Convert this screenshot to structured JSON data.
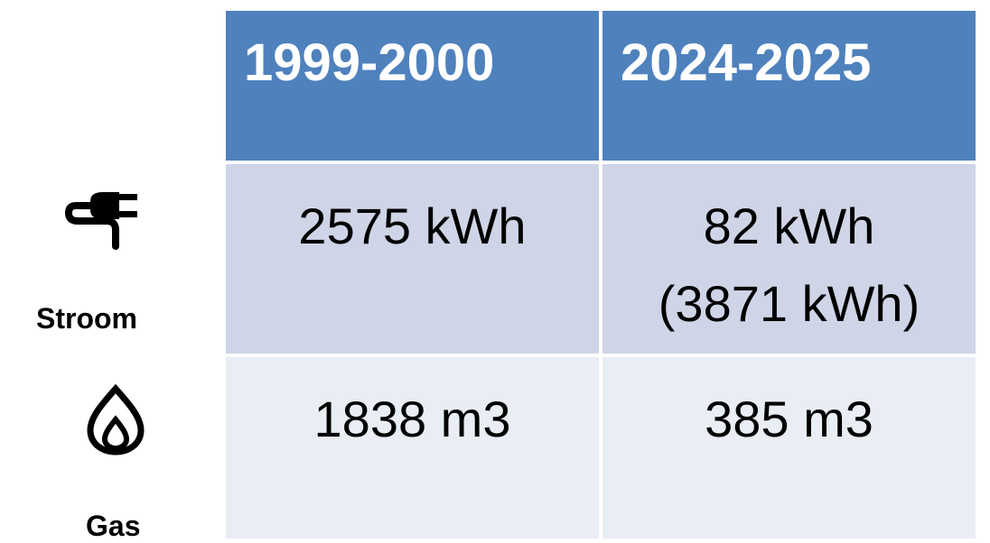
{
  "table": {
    "headers": [
      "1999-2000",
      "2024-2025"
    ],
    "rows": [
      {
        "label": "Stroom",
        "cells": [
          [
            "2575 kWh"
          ],
          [
            "82 kWh",
            "(3871 kWh)"
          ]
        ]
      },
      {
        "label": "Gas",
        "cells": [
          [
            "1838 m3"
          ],
          [
            "385 m3"
          ]
        ]
      }
    ]
  }
}
